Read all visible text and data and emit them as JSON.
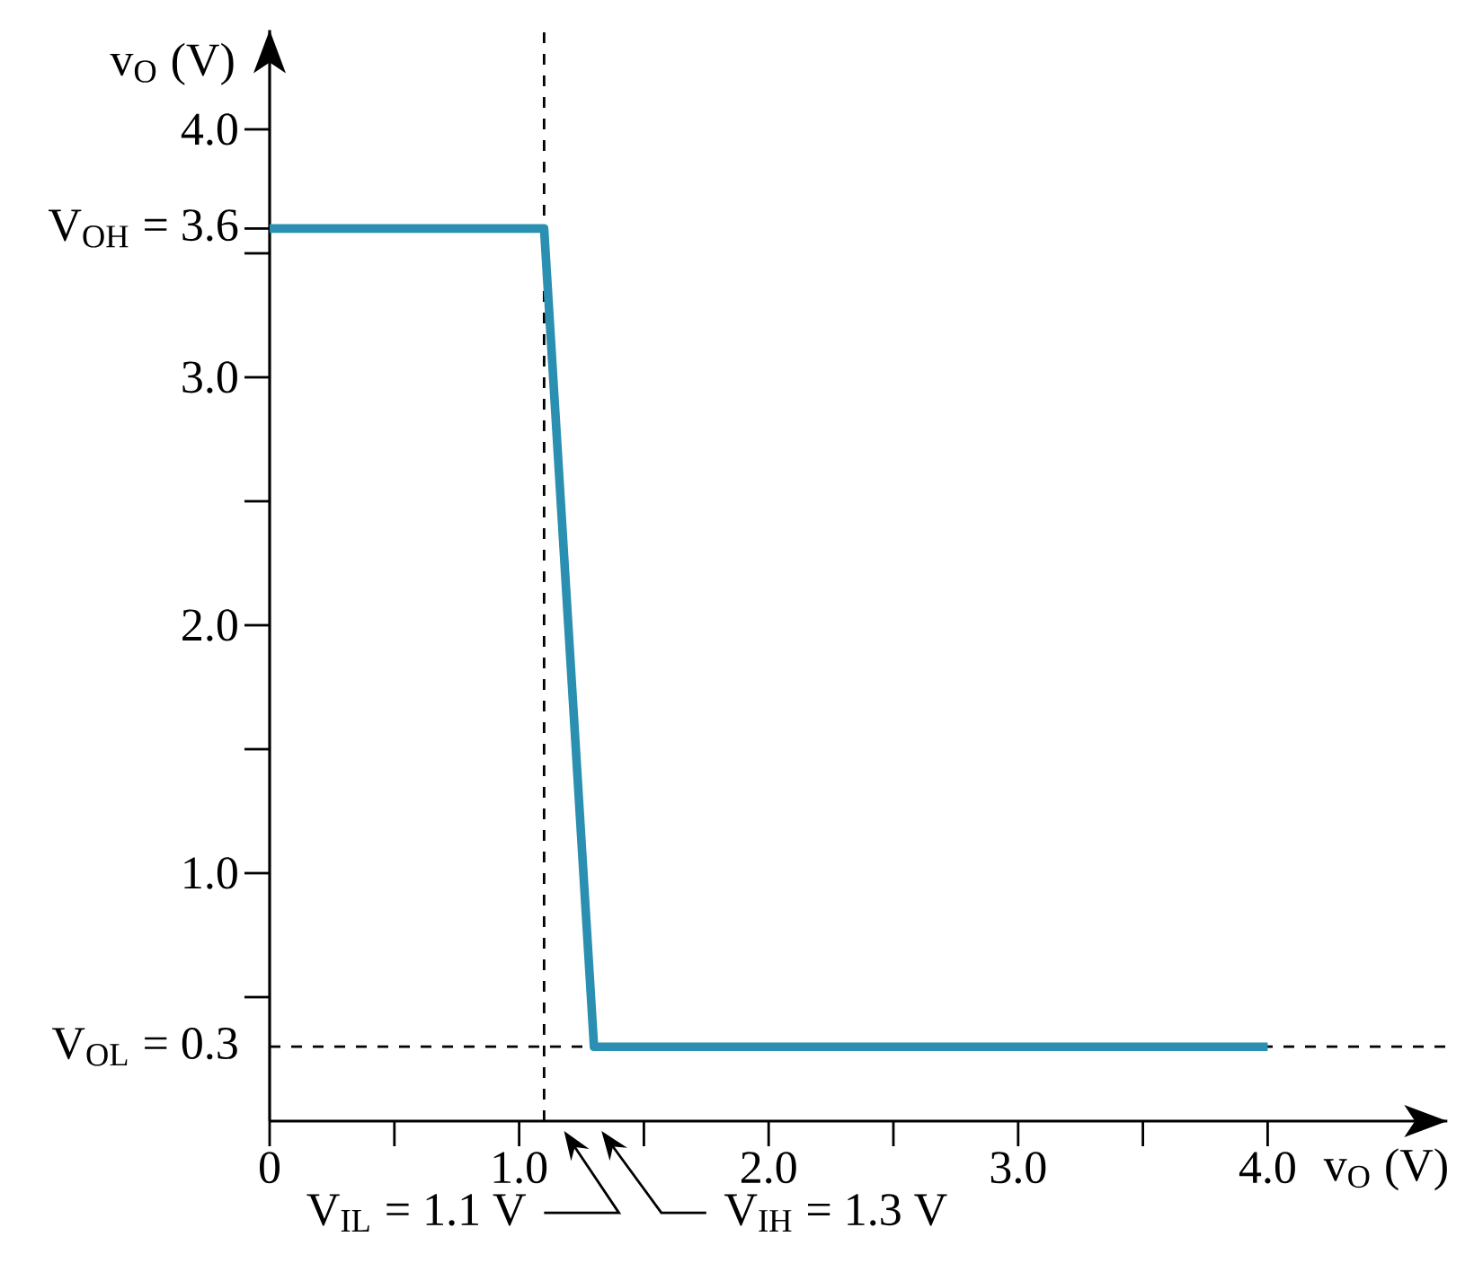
{
  "chart_data": {
    "type": "line",
    "xlabel": "v$_{O}$ (V)",
    "ylabel": "v$_{O}$ (V)",
    "x": [
      0,
      1.1,
      1.3,
      4.0
    ],
    "series": [
      {
        "color": "#2a8fb0",
        "values": [
          3.6,
          3.6,
          0.3,
          0.3
        ]
      }
    ],
    "xlim": [
      0,
      4.72
    ],
    "ylim": [
      0,
      4.4
    ],
    "xticks": [
      {
        "value": 0,
        "label": "0"
      },
      {
        "value": 0.5,
        "label": null
      },
      {
        "value": 1,
        "label": "1.0"
      },
      {
        "value": 1.5,
        "label": null
      },
      {
        "value": 2,
        "label": "2.0"
      },
      {
        "value": 2.5,
        "label": null
      },
      {
        "value": 3,
        "label": "3.0"
      },
      {
        "value": 3.5,
        "label": null
      },
      {
        "value": 4,
        "label": "4.0"
      }
    ],
    "yticks": [
      {
        "value": 0.3,
        "label": "V$_{OL}$ = 0.3"
      },
      {
        "value": 0.5,
        "label": null
      },
      {
        "value": 1,
        "label": "1.0"
      },
      {
        "value": 1.5,
        "label": null
      },
      {
        "value": 2,
        "label": "2.0"
      },
      {
        "value": 2.5,
        "label": null
      },
      {
        "value": 3,
        "label": "3.0"
      },
      {
        "value": 3.5,
        "label": null
      },
      {
        "value": 3.6,
        "label": "V$_{OH}$ = 3.6"
      },
      {
        "value": 4,
        "label": "4.0"
      }
    ],
    "ref_lines": [
      {
        "axis": "x",
        "value": 1.1,
        "line_style": "dashed"
      },
      {
        "axis": "y",
        "value": 0.3,
        "line_style": "dashed"
      }
    ],
    "annotations": [
      {
        "text": "V$_{IL}$ = 1.1 V",
        "x": 1.1,
        "y": 0
      },
      "V$_{IH}$ = 1.3 V"
    ],
    "grid": false,
    "marker": "none",
    "line_style": "solid"
  }
}
